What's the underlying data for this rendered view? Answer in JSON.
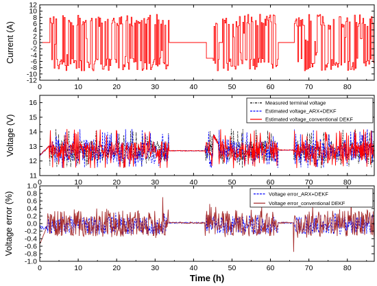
{
  "chart_data": [
    {
      "type": "line",
      "ylabel": "Current (A)",
      "xlim": [
        0,
        87
      ],
      "ylim": [
        -12,
        12
      ],
      "yticks": [
        -12,
        -10,
        -8,
        -6,
        -4,
        -2,
        0,
        2,
        4,
        6,
        8,
        10,
        12
      ],
      "yticklabels": [
        "-12",
        "-10",
        "-8",
        "-6",
        "-4",
        "-2",
        "0",
        "2",
        "4",
        "6",
        "8",
        "10",
        "12"
      ],
      "xticks": [
        0,
        10,
        20,
        30,
        40,
        50,
        60,
        70,
        80
      ],
      "xticklabels": [
        "0",
        "10",
        "20",
        "30",
        "40",
        "50",
        "60",
        "70",
        "80"
      ],
      "series": [
        {
          "color": "#ff0000",
          "pattern": "dynamic load profile, switching between about -9 A and +9 A; 0 A rests at 33.5-43, 46.5-47.5 and 62-66 h; -5 A pulse at 43-45 h",
          "active_segments": [
            [
              2.5,
              33.5
            ],
            [
              45,
              46.5
            ],
            [
              47.5,
              62
            ],
            [
              66,
              87
            ]
          ],
          "rest_value": 0,
          "pulse": {
            "x": [
              43.2,
              45.0
            ],
            "value": -5
          },
          "amplitude_range": [
            -9,
            9
          ]
        }
      ]
    },
    {
      "type": "line",
      "ylabel": "Voltage (V)",
      "xlim": [
        0,
        87
      ],
      "ylim": [
        11,
        16.5
      ],
      "yticks": [
        11,
        12,
        13,
        14,
        15,
        16
      ],
      "yticklabels": [
        "11",
        "12",
        "13",
        "14",
        "15",
        "16"
      ],
      "xticks": [
        0,
        10,
        20,
        30,
        40,
        50,
        60,
        70,
        80
      ],
      "xticklabels": [
        "0",
        "10",
        "20",
        "30",
        "40",
        "50",
        "60",
        "70",
        "80"
      ],
      "legend": "top-right",
      "series": [
        {
          "name": "Measured terminal voltage",
          "color": "#000000",
          "dash": "dashdot"
        },
        {
          "name": "Estimated voltage_ARX+DEKF",
          "color": "#0000ff",
          "dash": "dash"
        },
        {
          "name": "Estimated voltage_conventional DEKF",
          "color": "#ff0000",
          "dash": "solid"
        }
      ],
      "baseline": 12.7,
      "swing_range": [
        11.5,
        14.2
      ],
      "rest_segments": [
        [
          33.5,
          43,
          12.7
        ],
        [
          62,
          66,
          12.75
        ]
      ],
      "step_at_45h": 13.8
    },
    {
      "type": "line",
      "ylabel": "Voltage error (%)",
      "xlim": [
        0,
        87
      ],
      "ylim": [
        -1.0,
        1.0
      ],
      "yticks": [
        -1.0,
        -0.8,
        -0.6,
        -0.4,
        -0.2,
        0.0,
        0.2,
        0.4,
        0.6,
        0.8,
        1.0
      ],
      "yticklabels": [
        "-1.0",
        "-0.8",
        "-0.6",
        "-0.4",
        "-0.2",
        "0.0",
        "0.2",
        "0.4",
        "0.6",
        "0.8",
        "1.0"
      ],
      "xticks": [
        0,
        10,
        20,
        30,
        40,
        50,
        60,
        70,
        80
      ],
      "xticklabels": [
        "0",
        "10",
        "20",
        "30",
        "40",
        "50",
        "60",
        "70",
        "80"
      ],
      "xlabel": "Time (h)",
      "legend": "top-right",
      "series": [
        {
          "name": "Voltage error_ARX+DEKF",
          "color": "#0000ff",
          "dash": "dash",
          "typical_range": [
            -0.3,
            0.3
          ]
        },
        {
          "name": "Voltage error_conventional DEKF",
          "color": "#a52a2a",
          "dash": "solid",
          "typical_range": [
            -0.4,
            0.45
          ],
          "peaks": [
            0.7,
            -0.75
          ]
        }
      ]
    }
  ]
}
